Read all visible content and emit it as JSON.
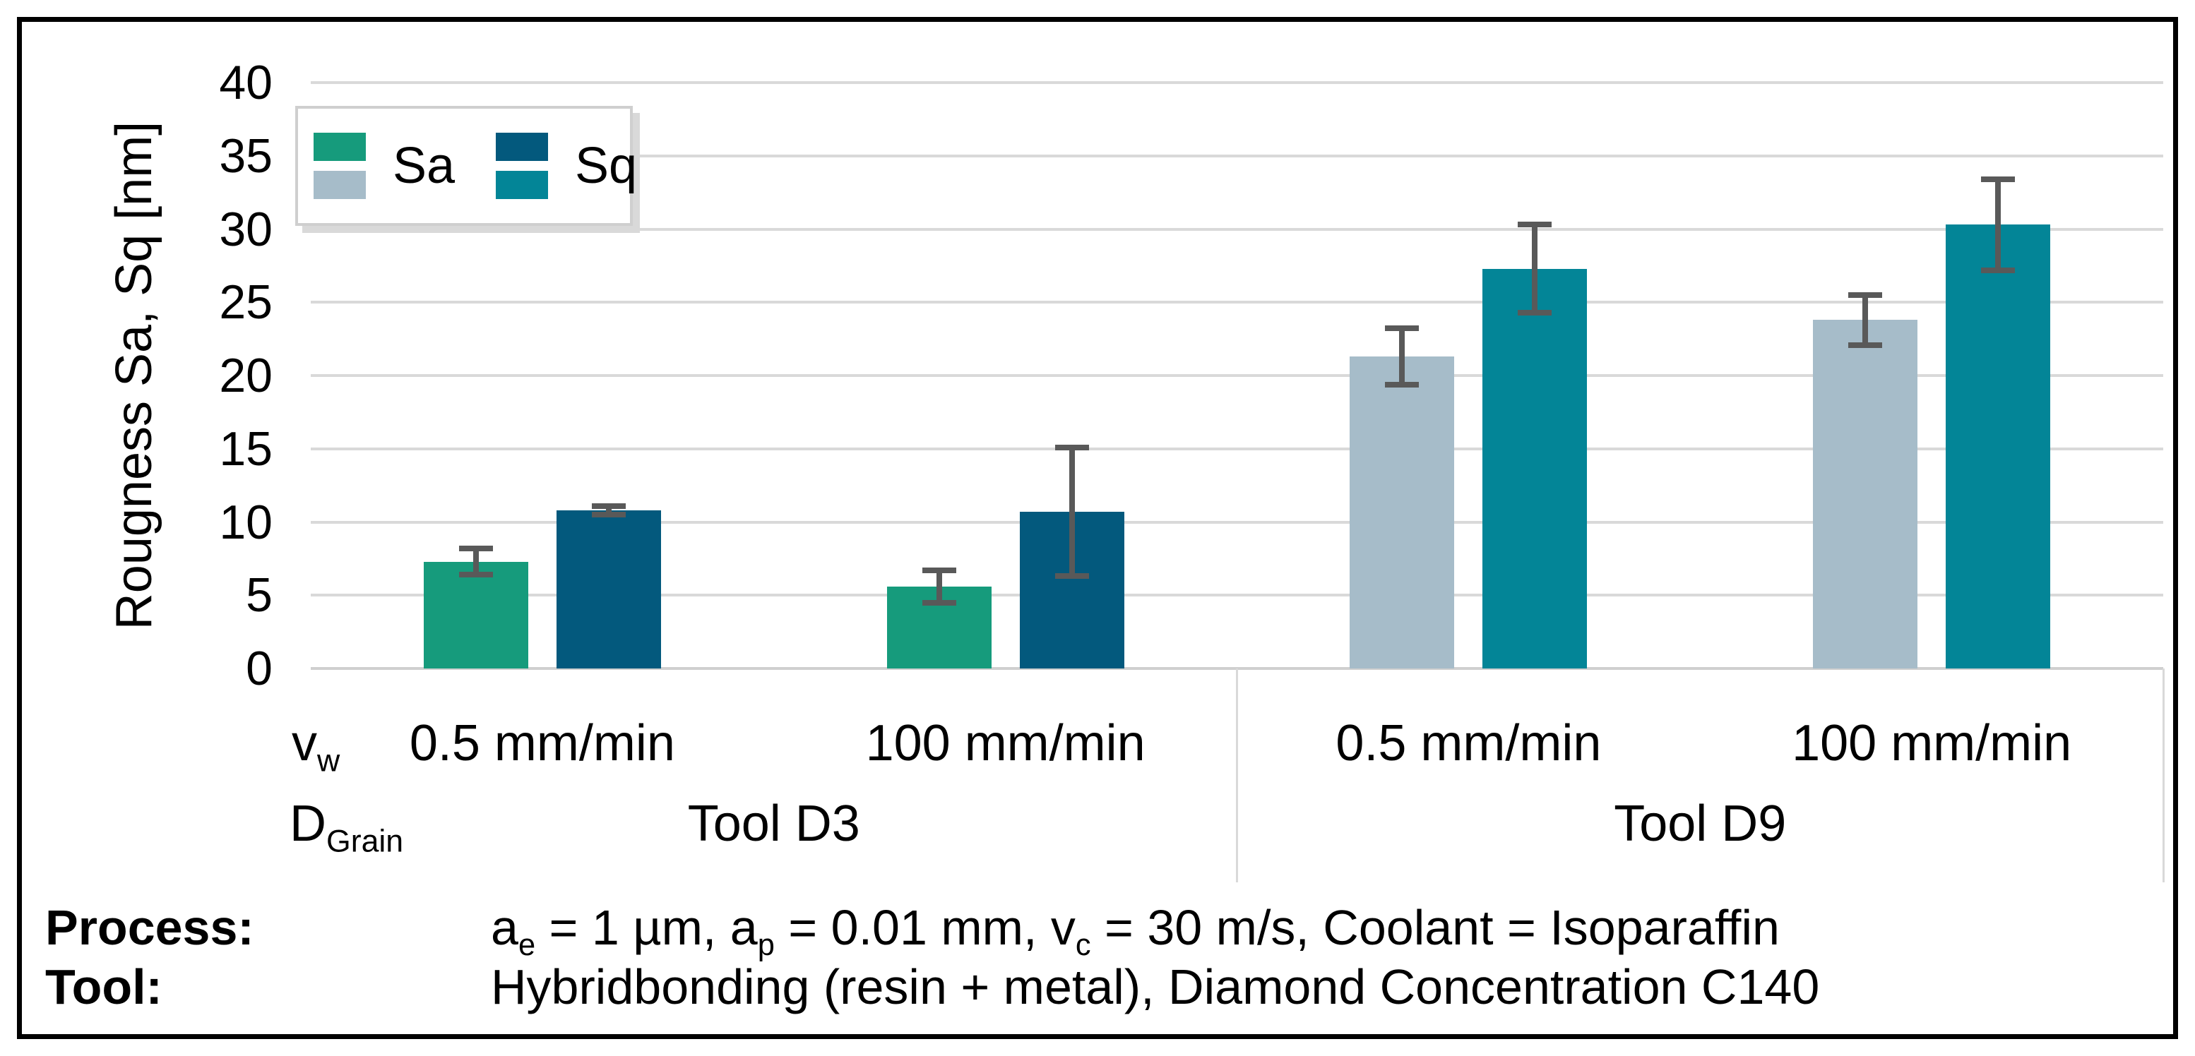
{
  "chart_data": {
    "type": "bar",
    "title": "",
    "ylabel": "Rougness Sa, Sq [nm]",
    "ylim": [
      0,
      40
    ],
    "yticks": [
      0,
      5,
      10,
      15,
      20,
      25,
      30,
      35,
      40
    ],
    "grid": "horizontal",
    "legend_position": "top-left",
    "legend": [
      {
        "name": "Sa",
        "swatches": [
          "#169b7c",
          "#a6bcc9"
        ]
      },
      {
        "name": "Sq",
        "swatches": [
          "#03597d",
          "#038597"
        ]
      }
    ],
    "x_axis_var": {
      "base": "v",
      "sub": "w"
    },
    "group_axis_var": {
      "base": "D",
      "sub": "Grain"
    },
    "groups": [
      {
        "label": "Tool D3",
        "categories": [
          {
            "label": "0.5 mm/min",
            "bars": [
              {
                "series": "Sa",
                "value": 7.3,
                "err": 1.1,
                "color": "#169b7c"
              },
              {
                "series": "Sq",
                "value": 10.8,
                "err": 0.5,
                "color": "#03597d"
              }
            ]
          },
          {
            "label": "100 mm/min",
            "bars": [
              {
                "series": "Sa",
                "value": 5.6,
                "err": 1.3,
                "color": "#169b7c"
              },
              {
                "series": "Sq",
                "value": 10.7,
                "err": 4.6,
                "color": "#03597d"
              }
            ]
          }
        ]
      },
      {
        "label": "Tool D9",
        "categories": [
          {
            "label": "0.5 mm/min",
            "bars": [
              {
                "series": "Sa",
                "value": 21.3,
                "err": 2.1,
                "color": "#a6bcc9"
              },
              {
                "series": "Sq",
                "value": 27.3,
                "err": 3.2,
                "color": "#038597"
              }
            ]
          },
          {
            "label": "100 mm/min",
            "bars": [
              {
                "series": "Sa",
                "value": 23.8,
                "err": 1.9,
                "color": "#a6bcc9"
              },
              {
                "series": "Sq",
                "value": 30.3,
                "err": 3.3,
                "color": "#038597"
              }
            ]
          }
        ]
      }
    ]
  },
  "footer": {
    "process_label": "Process:",
    "process_segments": [
      {
        "t": "a",
        "sub": "e"
      },
      {
        "t": " = 1 µm, "
      },
      {
        "t": "a",
        "sub": "p"
      },
      {
        "t": " = 0.01 mm, "
      },
      {
        "t": "v",
        "sub": "c"
      },
      {
        "t": " = 30 m/s, Coolant = Isoparaffin"
      }
    ],
    "tool_label": "Tool:",
    "tool_value": "Hybridbonding (resin + metal), Diamond Concentration C140"
  },
  "colors": {
    "gridline": "#d9d9d9",
    "zero_line": "#cfcfcf",
    "error_bar": "#595959",
    "legend_border": "#cfcfcf",
    "frame": "#000000",
    "sa_d3": "#169b7c",
    "sa_d9": "#a6bcc9",
    "sq_d3": "#03597d",
    "sq_d9": "#038597"
  }
}
